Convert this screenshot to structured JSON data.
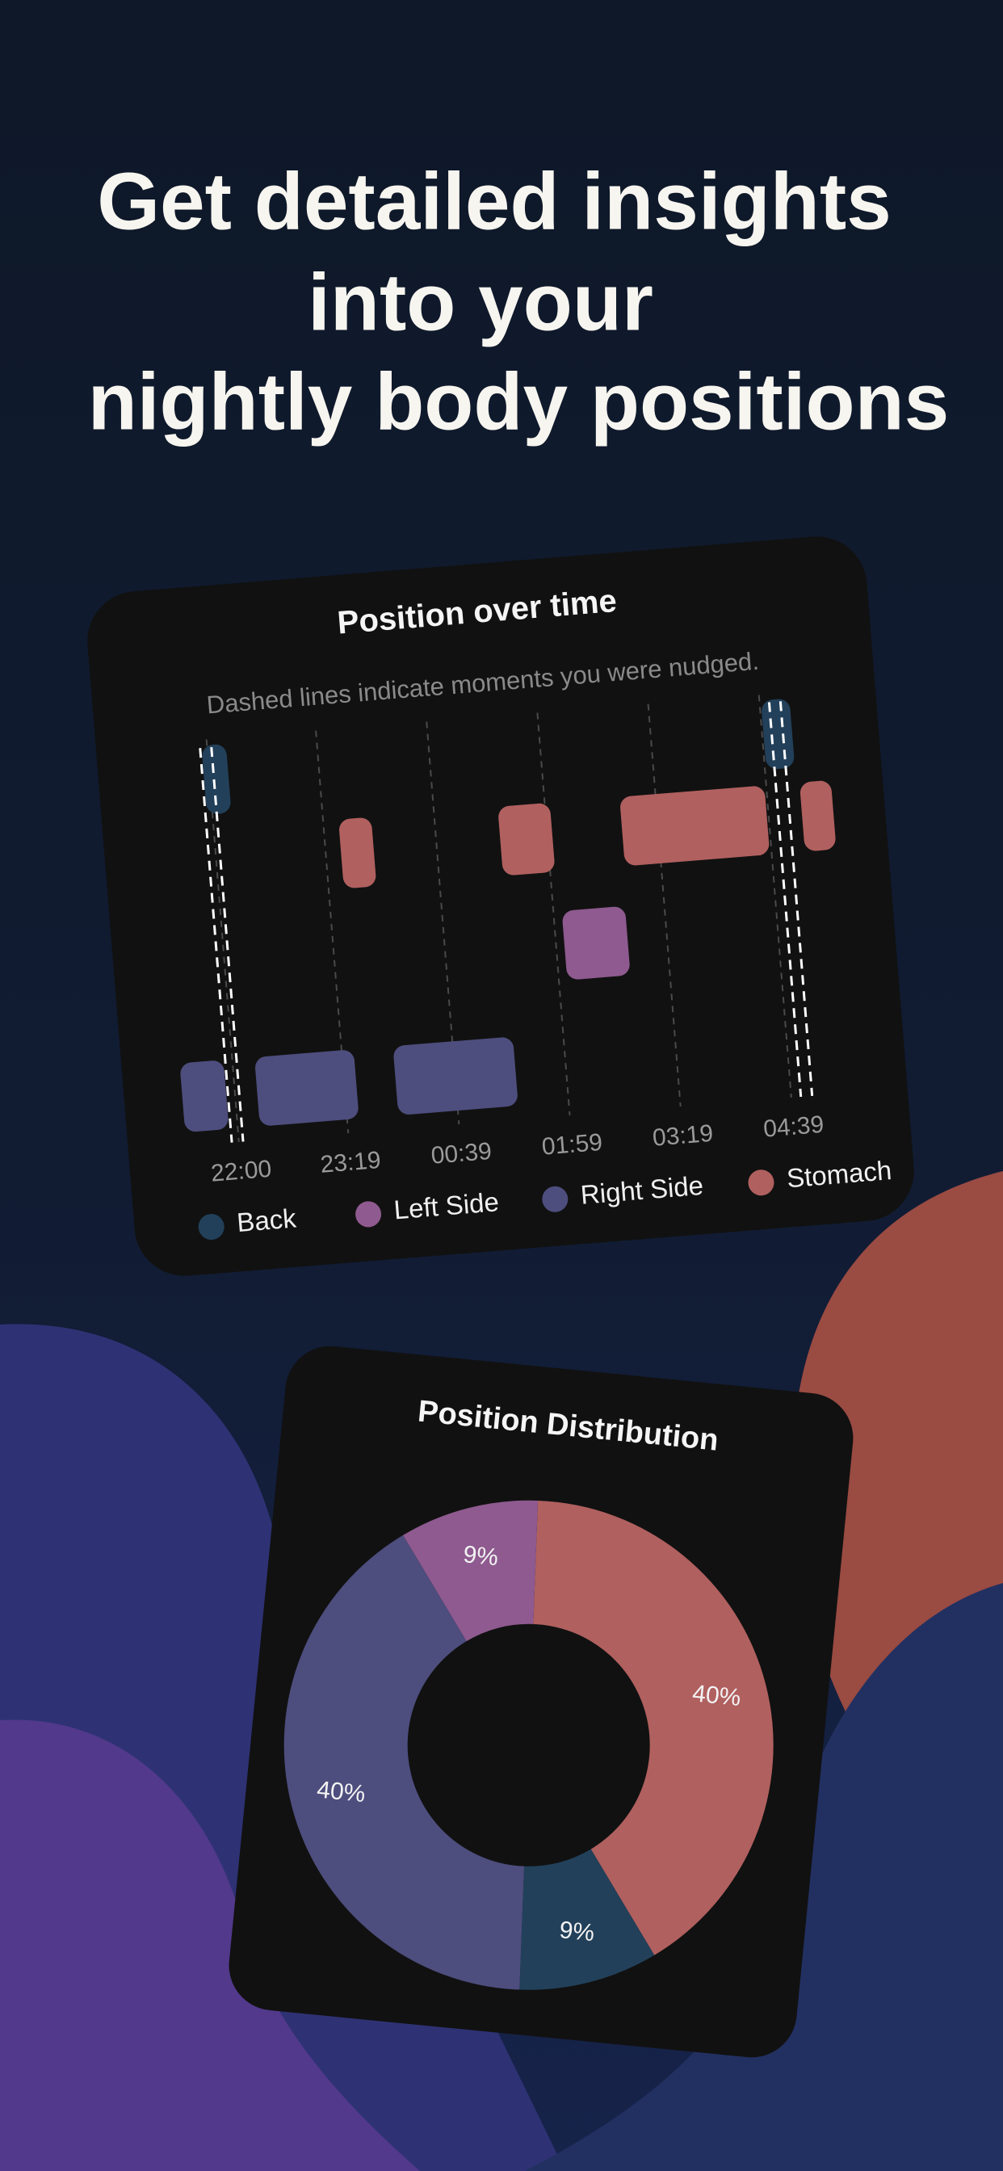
{
  "header": {
    "title_lines": [
      "Get detailed insights",
      "into your",
      "nightly body positions"
    ]
  },
  "chart_data": [
    {
      "type": "timeline",
      "title": "Position over time",
      "subtitle": "Dashed lines indicate moments you were nudged.",
      "xlim": [
        -45,
        455
      ],
      "xticks": [
        {
          "value": 0,
          "label": "22:00"
        },
        {
          "value": 79,
          "label": "23:19"
        },
        {
          "value": 159,
          "label": "00:39"
        },
        {
          "value": 239,
          "label": "01:59"
        },
        {
          "value": 319,
          "label": "03:19"
        },
        {
          "value": 399,
          "label": "04:39"
        }
      ],
      "grid": true,
      "series": [
        {
          "name": "Back",
          "color": "#22405a",
          "segments": [
            [
              -4,
              16
            ],
            [
              400,
              423
            ]
          ]
        },
        {
          "name": "Left Side",
          "color": "#8e5a8f",
          "segments": [
            [
              245,
              293
            ]
          ]
        },
        {
          "name": "Right Side",
          "color": "#4d4d7e",
          "segments": [
            [
              -38,
              -4
            ],
            [
              16,
              90
            ],
            [
              116,
              205
            ]
          ]
        },
        {
          "name": "Stomach",
          "color": "#b0605f",
          "segments": [
            [
              90,
              116
            ],
            [
              205,
              245
            ],
            [
              293,
              400
            ],
            [
              423,
              448
            ]
          ]
        }
      ],
      "nudges": [
        -1,
        410
      ]
    },
    {
      "type": "donut",
      "title": "Position Distribution",
      "values": [
        40,
        9,
        40,
        9
      ],
      "value_labels": [
        "40%",
        "9%",
        "40%",
        "9%"
      ],
      "colors": [
        "#b0605f",
        "#22405a",
        "#4d4d7e",
        "#8e5a8f"
      ]
    }
  ]
}
